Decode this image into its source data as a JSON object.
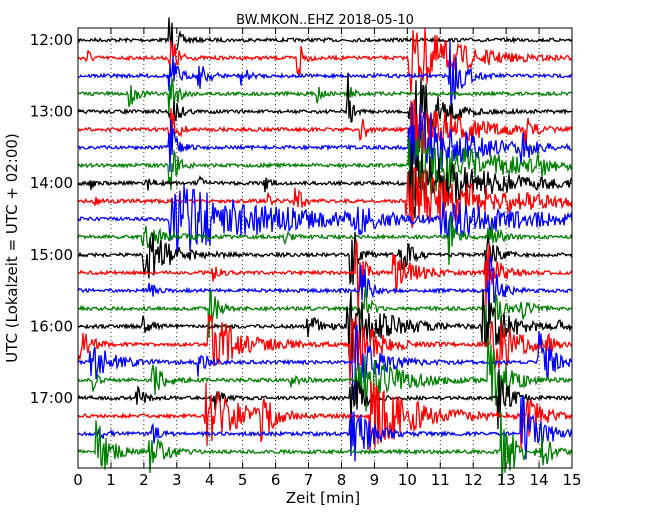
{
  "chart_data": {
    "type": "line",
    "title": "BW.MKON..EHZ 2018-05-10",
    "xlabel": "Zeit  [min]",
    "ylabel": "UTC (Lokalzeit = UTC + 02:00)",
    "xlim": [
      0,
      15
    ],
    "x_ticks": [
      "0",
      "1",
      "2",
      "3",
      "4",
      "5",
      "6",
      "7",
      "8",
      "9",
      "10",
      "11",
      "12",
      "13",
      "14",
      "15"
    ],
    "y_ticks": [
      "12:00",
      "13:00",
      "14:00",
      "15:00",
      "16:00",
      "17:00"
    ],
    "trace_interval_minutes": 15,
    "first_trace": "12:00",
    "last_trace": "17:45",
    "color_cycle": [
      "#000000",
      "#ff0000",
      "#0000ff",
      "#008000"
    ],
    "grid": "vertical dotted lines at each minute",
    "series": [
      {
        "start": "12:00",
        "values": []
      },
      {
        "start": "12:15",
        "values": []
      },
      {
        "start": "12:30",
        "values": []
      },
      {
        "start": "12:45",
        "values": []
      },
      {
        "start": "13:00",
        "values": []
      },
      {
        "start": "13:15",
        "values": []
      },
      {
        "start": "13:30",
        "values": []
      },
      {
        "start": "13:45",
        "values": []
      },
      {
        "start": "14:00",
        "values": []
      },
      {
        "start": "14:15",
        "values": []
      },
      {
        "start": "14:30",
        "values": []
      },
      {
        "start": "14:45",
        "values": []
      },
      {
        "start": "15:00",
        "values": []
      },
      {
        "start": "15:15",
        "values": []
      },
      {
        "start": "15:30",
        "values": []
      },
      {
        "start": "15:45",
        "values": []
      },
      {
        "start": "16:00",
        "values": []
      },
      {
        "start": "16:15",
        "values": []
      },
      {
        "start": "16:30",
        "values": []
      },
      {
        "start": "16:45",
        "values": []
      },
      {
        "start": "17:00",
        "values": []
      },
      {
        "start": "17:15",
        "values": []
      },
      {
        "start": "17:30",
        "values": []
      },
      {
        "start": "17:45",
        "values": []
      }
    ]
  }
}
